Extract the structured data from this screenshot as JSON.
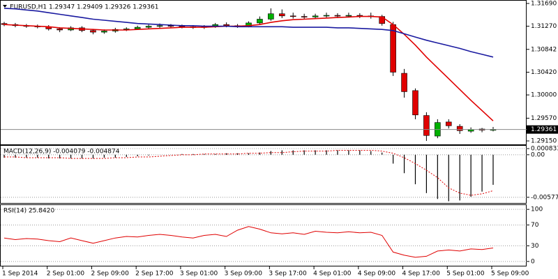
{
  "chart_data": [
    {
      "type": "candlestick",
      "title": "EURUSD,H1  1.29347 1.29409 1.29326 1.29361",
      "categories": [
        "1 Sep 2014",
        null,
        null,
        null,
        "2 Sep 01:00",
        null,
        null,
        null,
        "2 Sep 09:00",
        null,
        null,
        null,
        "2 Sep 17:00",
        null,
        null,
        null,
        "3 Sep 01:00",
        null,
        null,
        null,
        "3 Sep 09:00",
        null,
        null,
        null,
        "3 Sep 17:00",
        null,
        null,
        null,
        "4 Sep 01:00",
        null,
        null,
        null,
        "4 Sep 09:00",
        null,
        null,
        null,
        "4 Sep 17:00",
        null,
        null,
        null,
        "5 Sep 01:00",
        null,
        null,
        null,
        "5 Sep 09:00"
      ],
      "open": [
        1.3132,
        1.313,
        1.3128,
        1.3127,
        1.3126,
        1.3122,
        1.312,
        1.3124,
        1.3119,
        1.3116,
        1.3118,
        1.3121,
        1.3122,
        1.3125,
        1.3127,
        1.3128,
        1.3127,
        1.3126,
        1.3125,
        1.3126,
        1.313,
        1.3128,
        1.3127,
        1.3133,
        1.314,
        1.315,
        1.3146,
        1.3145,
        1.3144,
        1.3146,
        1.3147,
        1.3146,
        1.3147,
        1.3146,
        1.3145,
        1.313,
        1.304,
        1.3008,
        1.2962,
        1.2924,
        1.295,
        1.2942,
        1.2933,
        1.2937,
        1.29347
      ],
      "high": [
        1.3135,
        1.3133,
        1.3131,
        1.313,
        1.3129,
        1.3125,
        1.3127,
        1.3127,
        1.3122,
        1.3121,
        1.3124,
        1.3125,
        1.3128,
        1.313,
        1.3132,
        1.3131,
        1.313,
        1.3129,
        1.3129,
        1.3133,
        1.3134,
        1.3131,
        1.3136,
        1.3145,
        1.316,
        1.3158,
        1.3152,
        1.315,
        1.315,
        1.3152,
        1.3151,
        1.3152,
        1.3151,
        1.3152,
        1.3148,
        1.3135,
        1.3048,
        1.3012,
        1.2968,
        1.2955,
        1.2955,
        1.2946,
        1.294,
        1.2939,
        1.29409
      ],
      "low": [
        1.3127,
        1.3125,
        1.3124,
        1.3123,
        1.3119,
        1.3116,
        1.3118,
        1.3116,
        1.3112,
        1.3113,
        1.3115,
        1.3118,
        1.312,
        1.3122,
        1.3124,
        1.3124,
        1.3123,
        1.3122,
        1.3122,
        1.3124,
        1.3125,
        1.3124,
        1.3125,
        1.3131,
        1.3137,
        1.3142,
        1.3141,
        1.314,
        1.3141,
        1.3143,
        1.3142,
        1.3143,
        1.3142,
        1.3141,
        1.3128,
        1.3035,
        1.2995,
        1.2955,
        1.2915,
        1.292,
        1.2938,
        1.2928,
        1.293,
        1.2931,
        1.29326
      ],
      "close": [
        1.313,
        1.3128,
        1.3127,
        1.3126,
        1.3122,
        1.312,
        1.3124,
        1.3119,
        1.3116,
        1.3118,
        1.3121,
        1.3122,
        1.3125,
        1.3127,
        1.3128,
        1.3127,
        1.3126,
        1.3125,
        1.3126,
        1.313,
        1.3128,
        1.3127,
        1.3133,
        1.314,
        1.315,
        1.3146,
        1.3145,
        1.3144,
        1.3146,
        1.3147,
        1.3146,
        1.3147,
        1.3146,
        1.3145,
        1.3132,
        1.3042,
        1.3006,
        1.2963,
        1.2925,
        1.2949,
        1.2943,
        1.2934,
        1.2936,
        1.2935,
        1.29361
      ],
      "up_color": "#00b000",
      "down_color": "#e00000",
      "series": [
        {
          "color": "#e00000",
          "values": [
            1.313,
            1.3129,
            1.3128,
            1.3127,
            1.3126,
            1.3124,
            1.3123,
            1.3122,
            1.3121,
            1.312,
            1.312,
            1.312,
            1.3121,
            1.3122,
            1.3123,
            1.3124,
            1.3125,
            1.3125,
            1.3125,
            1.3126,
            1.3127,
            1.3127,
            1.3128,
            1.313,
            1.3134,
            1.3137,
            1.3139,
            1.314,
            1.3141,
            1.3142,
            1.3143,
            1.3144,
            1.3145,
            1.3145,
            1.3144,
            1.313,
            1.3112,
            1.3092,
            1.307,
            1.305,
            1.303,
            1.301,
            1.299,
            1.2971,
            1.2952
          ]
        },
        {
          "color": "#1a1aa0",
          "values": [
            1.316,
            1.3159,
            1.3157,
            1.3155,
            1.3152,
            1.3149,
            1.3146,
            1.3143,
            1.314,
            1.3138,
            1.3136,
            1.3134,
            1.3132,
            1.3131,
            1.313,
            1.3129,
            1.3128,
            1.3128,
            1.3127,
            1.3127,
            1.3127,
            1.3126,
            1.3126,
            1.3126,
            1.3126,
            1.3126,
            1.3125,
            1.3125,
            1.3125,
            1.3125,
            1.3124,
            1.3124,
            1.3123,
            1.3122,
            1.3121,
            1.3119,
            1.3113,
            1.3107,
            1.3101,
            1.3096,
            1.3091,
            1.3086,
            1.308,
            1.3075,
            1.307
          ]
        }
      ],
      "ylim": [
        1.29086,
        1.31754
      ],
      "yticks": [
        {
          "value": 1.3169,
          "label": "1.31690"
        },
        {
          "value": 1.3127,
          "label": "1.31270"
        },
        1.30842,
        {
          "value": 1.3042,
          "label": "1.30420"
        },
        {
          "value": 1.3,
          "label": "1.30000"
        },
        {
          "value": 1.2957,
          "label": "1.29570"
        },
        {
          "value": 1.2915,
          "label": "1.29150"
        }
      ]
    },
    {
      "type": "macd",
      "title": "MACD(12,26,9) -0.004079 -0.004874",
      "series": [
        {
          "style": "bars",
          "color": "#000000",
          "values": [
            -0.0004,
            -0.0004,
            -0.0004,
            -0.0004,
            -0.0005,
            -0.0005,
            -0.0005,
            -0.0005,
            -0.0005,
            -0.0004,
            -0.0004,
            -0.0003,
            -0.0002,
            -0.0001,
            0.0,
            0.0,
            0.0001,
            0.0001,
            0.0001,
            0.0001,
            0.0002,
            0.0002,
            0.0002,
            0.0003,
            0.0005,
            0.0006,
            0.0006,
            0.0006,
            0.0006,
            0.0006,
            0.0006,
            0.0006,
            0.0006,
            0.0005,
            0.0003,
            -0.0012,
            -0.0025,
            -0.004,
            -0.0052,
            -0.006,
            -0.0063,
            -0.0062,
            -0.0057,
            -0.005,
            -0.004079
          ]
        },
        {
          "style": "dotted",
          "color": "#e00000",
          "values": [
            -0.0003,
            -0.0003,
            -0.0004,
            -0.0004,
            -0.0004,
            -0.0004,
            -0.0005,
            -0.0005,
            -0.0005,
            -0.0005,
            -0.0004,
            -0.0004,
            -0.0003,
            -0.0003,
            -0.0002,
            -0.0001,
            0.0,
            0.0,
            0.0001,
            0.0001,
            0.0001,
            0.0001,
            0.0002,
            0.0002,
            0.0003,
            0.0003,
            0.0004,
            0.0005,
            0.0005,
            0.0005,
            0.0006,
            0.0006,
            0.0006,
            0.0006,
            0.0005,
            0.0002,
            -0.0004,
            -0.0012,
            -0.0021,
            -0.0031,
            -0.0045,
            -0.0052,
            -0.0055,
            -0.0053,
            -0.004874
          ]
        }
      ],
      "ylim": [
        -0.00654,
        0.00131
      ],
      "yticks": [
        0.000833,
        {
          "value": 0,
          "label": "0.00"
        },
        -0.00577
      ]
    },
    {
      "type": "line",
      "title": "RSI(14) 25.8420",
      "series": [
        {
          "color": "#e00000",
          "values": [
            45,
            42,
            44,
            43,
            40,
            38,
            45,
            40,
            35,
            40,
            45,
            48,
            47,
            50,
            52,
            50,
            47,
            45,
            50,
            52,
            48,
            60,
            67,
            62,
            55,
            53,
            55,
            52,
            58,
            56,
            55,
            57,
            55,
            56,
            50,
            18,
            12,
            8,
            10,
            20,
            22,
            20,
            24,
            23,
            25.842
          ]
        }
      ],
      "ylim": [
        -9.6,
        109.6
      ],
      "yticks": [
        100,
        70,
        30,
        0
      ]
    }
  ]
}
